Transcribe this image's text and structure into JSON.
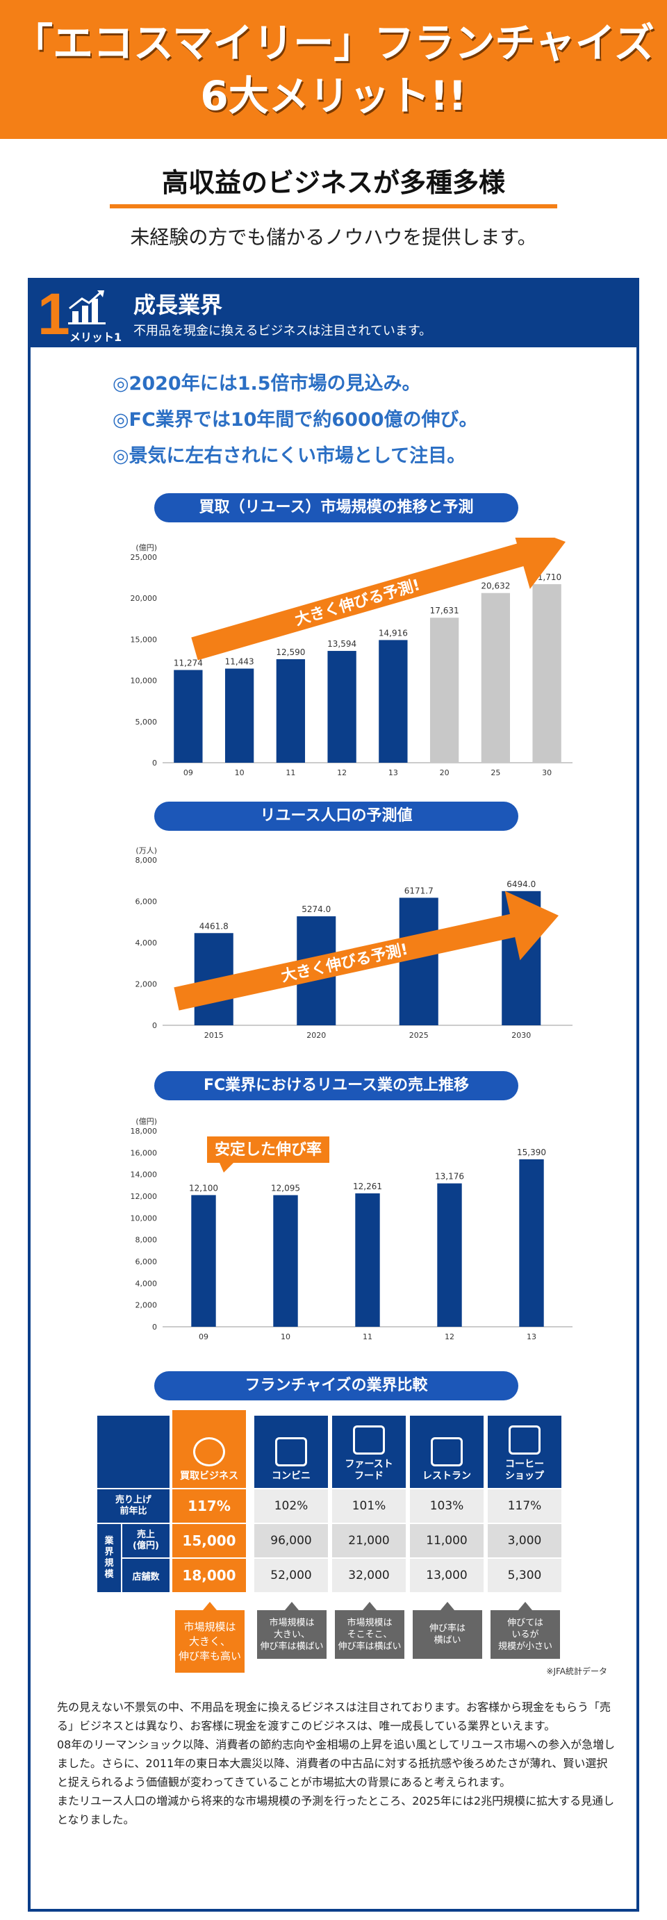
{
  "banner": {
    "line1": "「エコスマイリー」フランチャイズ",
    "line2": "6大メリット!!"
  },
  "section": {
    "title": "高収益のビジネスが多種多様",
    "subtitle": "未経験の方でも儲かるノウハウを提供します。"
  },
  "merit": {
    "number": "1",
    "label": "メリット1",
    "title": "成長業界",
    "description": "不用品を現金に換えるビジネスは注目されています。"
  },
  "bullets": [
    "◎2020年には1.5倍市場の見込み。",
    "◎FC業界では10年間で約6000億の伸び。",
    "◎景気に左右されにくい市場として注目。"
  ],
  "colors": {
    "orange": "#f47f16",
    "navy": "#0b3e8a",
    "bar_blue": "#0b3e8a",
    "bar_gray": "#c8c8c8",
    "pill": "#1c57b8"
  },
  "chart_data": [
    {
      "type": "bar",
      "title": "買取（リユース）市場規模の推移と予測",
      "unit": "(億円)",
      "categories": [
        "09",
        "10",
        "11",
        "12",
        "13",
        "20",
        "25",
        "30"
      ],
      "values": [
        11274,
        11443,
        12590,
        13594,
        14916,
        17631,
        20632,
        21710
      ],
      "value_labels": [
        "11,274",
        "11,443",
        "12,590",
        "13,594",
        "14,916",
        "17,631",
        "20,632",
        "21,710"
      ],
      "forecast_from_index": 5,
      "yticks": [
        "0",
        "5,000",
        "10,000",
        "15,000",
        "20,000",
        "25,000"
      ],
      "ylim": [
        0,
        25000
      ],
      "arrow_label": "大きく伸びる予測!"
    },
    {
      "type": "bar",
      "title": "リユース人口の予測値",
      "unit": "(万人)",
      "categories": [
        "2015",
        "2020",
        "2025",
        "2030"
      ],
      "values": [
        4461.8,
        5274.0,
        6171.7,
        6494.0
      ],
      "value_labels": [
        "4461.8",
        "5274.0",
        "6171.7",
        "6494.0"
      ],
      "yticks": [
        "0",
        "2,000",
        "4,000",
        "6,000",
        "8,000"
      ],
      "ylim": [
        0,
        8000
      ],
      "arrow_label": "大きく伸びる予測!"
    },
    {
      "type": "bar",
      "title": "FC業界におけるリユース業の売上推移",
      "unit": "(億円)",
      "categories": [
        "09",
        "10",
        "11",
        "12",
        "13"
      ],
      "values": [
        12100,
        12095,
        12261,
        13176,
        15390
      ],
      "value_labels": [
        "12,100",
        "12,095",
        "12,261",
        "13,176",
        "15,390"
      ],
      "yticks": [
        "0",
        "2,000",
        "4,000",
        "6,000",
        "8,000",
        "10,000",
        "12,000",
        "14,000",
        "16,000",
        "18,000"
      ],
      "ylim": [
        0,
        18000
      ],
      "callout": "安定した伸び率"
    }
  ],
  "comparison": {
    "title": "フランチャイズの業界比較",
    "columns": [
      "買取ビジネス",
      "コンビニ",
      "ファースト\nフード",
      "レストラン",
      "コーヒー\nショップ"
    ],
    "row_labels": {
      "growth": "売り上げ\n前年比",
      "group": "業\n界\n規\n模",
      "sales": "売上\n(億円)",
      "stores": "店舗数"
    },
    "rows": {
      "growth": [
        "117%",
        "102%",
        "101%",
        "103%",
        "117%"
      ],
      "sales": [
        "15,000",
        "96,000",
        "21,000",
        "11,000",
        "3,000"
      ],
      "stores": [
        "18,000",
        "52,000",
        "32,000",
        "13,000",
        "5,300"
      ]
    },
    "notes": [
      "市場規模は\n大きく、\n伸び率も高い",
      "市場規模は\n大きい、\n伸び率は横ばい",
      "市場規模は\nそこそこ、\n伸び率は横ばい",
      "伸び率は\n横ばい",
      "伸びては\nいるが\n規模が小さい"
    ],
    "source": "※JFA統計データ"
  },
  "paragraphs": [
    "先の見えない不景気の中、不用品を現金に換えるビジネスは注目されております。お客様から現金をもらう「売る」ビジネスとは異なり、お客様に現金を渡すこのビジネスは、唯一成長している業界といえます。",
    "08年のリーマンショック以降、消費者の節約志向や金相場の上昇を追い風としてリユース市場への参入が急増しました。さらに、2011年の東日本大震災以降、消費者の中古品に対する抵抗感や後ろめたさが薄れ、賢い選択と捉えられるよう価値観が変わってきていることが市場拡大の背景にあると考えられます。",
    "またリユース人口の増減から将来的な市場規模の予測を行ったところ、2025年には2兆円規模に拡大する見通しとなりました。"
  ]
}
